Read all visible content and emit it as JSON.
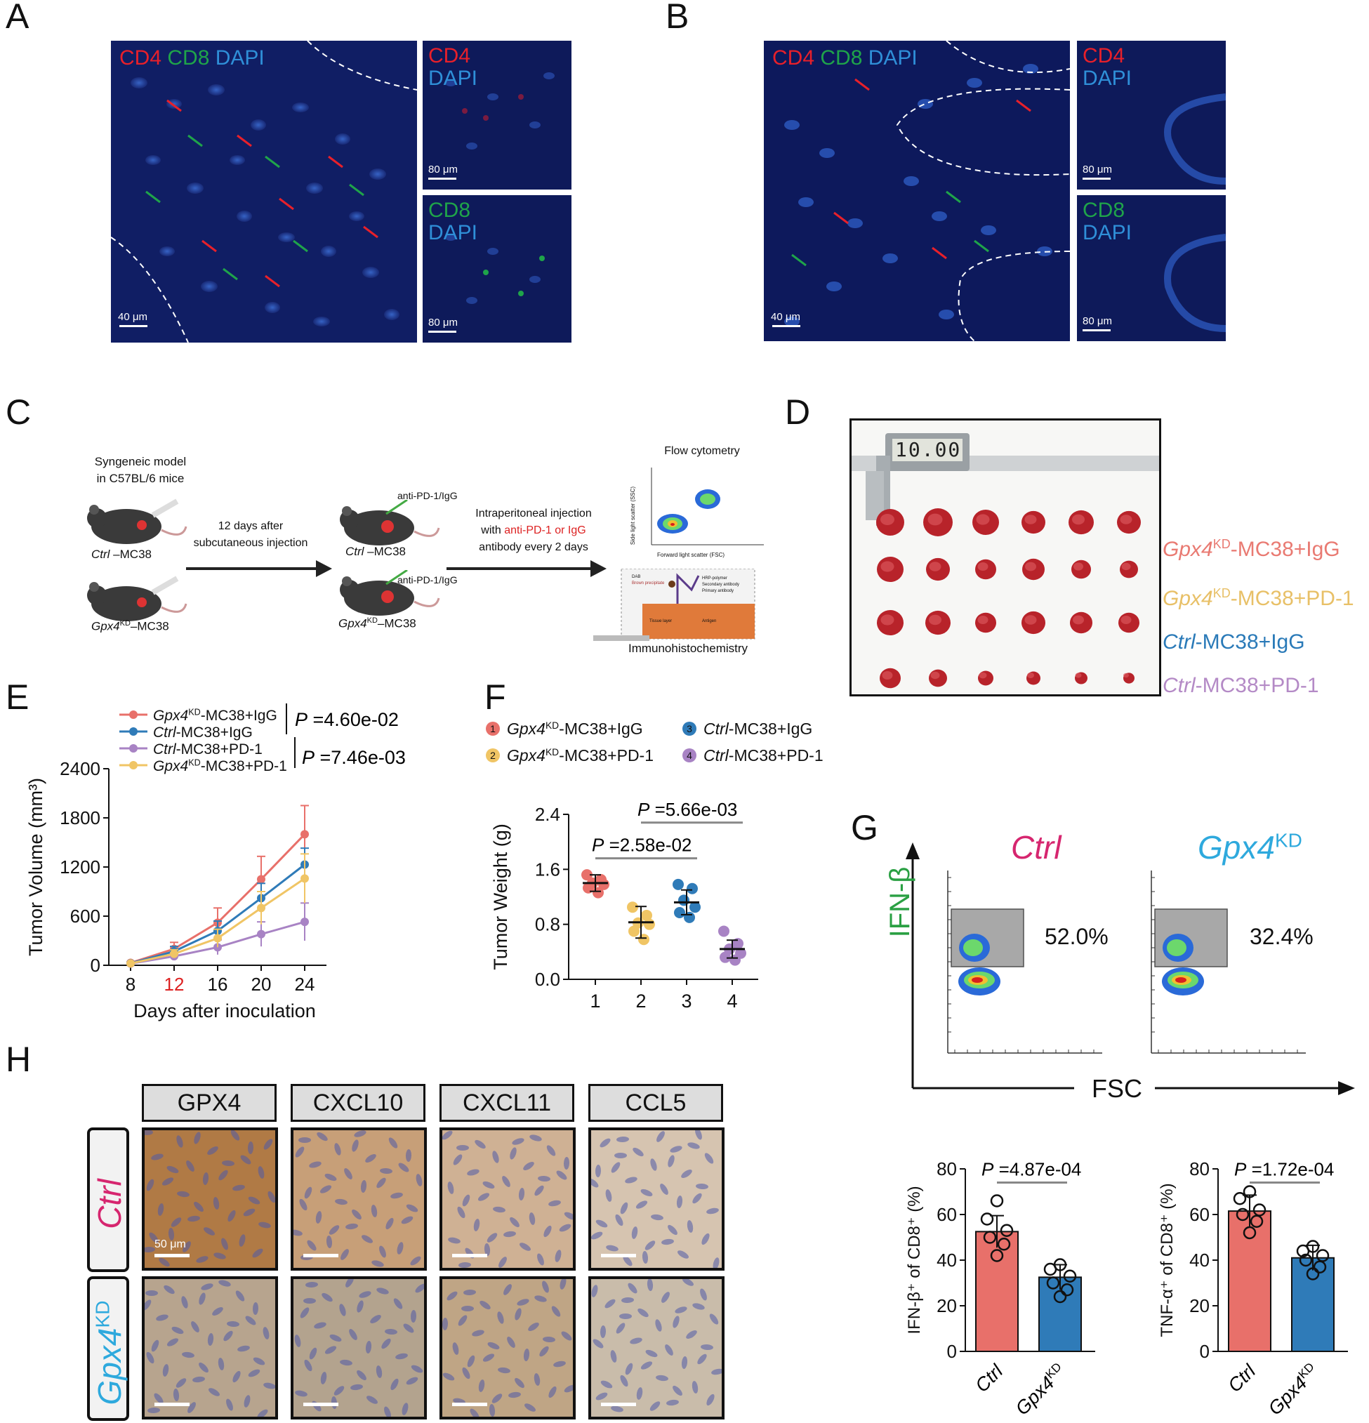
{
  "panels": {
    "A": "A",
    "B": "B",
    "C": "C",
    "D": "D",
    "E": "E",
    "F": "F",
    "G": "G",
    "H": "H"
  },
  "micro": {
    "cd4": "CD4",
    "cd8": "CD8",
    "dapi": "DAPI",
    "scale40": "40 μm",
    "scale80": "80 μm",
    "colors": {
      "cd4": "#e8202a",
      "cd8": "#1fa44a",
      "dapi": "#2f8fd8",
      "bg": "#0a1650"
    }
  },
  "schematic": {
    "model_line1": "Syngeneic model",
    "model_line2": "in C57BL/6 mice",
    "ctrl_prefix": "Ctrl",
    "ctrl_suffix": " –MC38",
    "gpx4_prefix": "Gpx4",
    "gpx4_sup": "KD",
    "gpx4_suffix": "–MC38",
    "step1_line1": "12 days after",
    "step1_line2": "subcutaneous injection",
    "anti": "anti-PD-1/IgG",
    "step2_line1": "Intraperitoneal injection",
    "step2_line2_a": "with ",
    "step2_line2_red": "anti-PD-1 or IgG",
    "step2_line3": "antibody every 2 days",
    "flow_title": "Flow cytometry",
    "flow_xlabel": "Forward light scatter (FSC)",
    "flow_ylabel": "Side light scatter (SSC)",
    "ihc_title": "Immunohistochemistry",
    "ihc_labels": [
      "DAB",
      "Brown precipitate",
      "HRP-polymer",
      "Secondary antibody",
      "Primary antibody",
      "Tissue layer",
      "Antigen"
    ]
  },
  "photo": {
    "caliper_reading": "10.00",
    "rows": [
      {
        "prefix": "Gpx4",
        "sup": "KD",
        "suffix": "-MC38+IgG",
        "color": "#e97a72"
      },
      {
        "prefix": "Gpx4",
        "sup": "KD",
        "suffix": "-MC38+PD-1",
        "color": "#e8c067"
      },
      {
        "prefix": "Ctrl",
        "sup": "",
        "suffix": "-MC38+IgG",
        "color": "#2a7ab8"
      },
      {
        "prefix": "Ctrl",
        "sup": "",
        "suffix": "-MC38+PD-1",
        "color": "#b48ac6"
      }
    ]
  },
  "chart_data": [
    {
      "id": "E",
      "type": "line",
      "xlabel": "Days after inoculation",
      "ylabel": "Tumor Volume (mm³)",
      "x": [
        8,
        12,
        16,
        20,
        24
      ],
      "highlight_x": 12,
      "ylim": [
        0,
        2400
      ],
      "yticks": [
        0,
        600,
        1200,
        1800,
        2400
      ],
      "series": [
        {
          "name": "Gpx4KD-MC38+IgG",
          "label_prefix": "Gpx4",
          "label_sup": "KD",
          "label_suffix": "-MC38+IgG",
          "color": "#e8706a",
          "values": [
            30,
            200,
            520,
            1050,
            1600
          ],
          "err": [
            10,
            80,
            180,
            280,
            350
          ]
        },
        {
          "name": "Ctrl-MC38+IgG",
          "label_prefix": "Ctrl",
          "label_sup": "",
          "label_suffix": "-MC38+IgG",
          "color": "#2f7bb8",
          "values": [
            25,
            170,
            420,
            820,
            1230
          ],
          "err": [
            10,
            60,
            120,
            180,
            200
          ]
        },
        {
          "name": "Ctrl-MC38+PD-1",
          "label_prefix": "Ctrl",
          "label_sup": "",
          "label_suffix": "-MC38+PD-1",
          "color": "#a883c4",
          "values": [
            20,
            110,
            220,
            380,
            530
          ],
          "err": [
            8,
            40,
            90,
            150,
            230
          ]
        },
        {
          "name": "Gpx4KD-MC38+PD-1",
          "label_prefix": "Gpx4",
          "label_sup": "KD",
          "label_suffix": "-MC38+PD-1",
          "color": "#f0c565",
          "values": [
            22,
            140,
            330,
            700,
            1060
          ],
          "err": [
            8,
            50,
            110,
            200,
            300
          ]
        }
      ],
      "pvalues": [
        {
          "label": "P",
          "value": " =4.60e-02"
        },
        {
          "label": "P",
          "value": " =7.46e-03"
        }
      ]
    },
    {
      "id": "F",
      "type": "scatter",
      "ylabel": "Tumor Weight (g)",
      "categories": [
        "1",
        "2",
        "3",
        "4"
      ],
      "ylim": [
        0,
        2.4
      ],
      "yticks": [
        "0.0",
        "0.8",
        "1.6",
        "2.4"
      ],
      "legend": [
        {
          "num": "1",
          "prefix": "Gpx4",
          "sup": "KD",
          "suffix": "-MC38+IgG",
          "color": "#e8706a"
        },
        {
          "num": "3",
          "prefix": "Ctrl",
          "sup": "",
          "suffix": "-MC38+IgG",
          "color": "#2f7bb8"
        },
        {
          "num": "2",
          "prefix": "Gpx4",
          "sup": "KD",
          "suffix": "-MC38+PD-1",
          "color": "#f0c565"
        },
        {
          "num": "4",
          "prefix": "Ctrl",
          "sup": "",
          "suffix": "-MC38+PD-1",
          "color": "#a883c4"
        }
      ],
      "groups": [
        {
          "color": "#e8706a",
          "mean": 1.4,
          "sd": 0.12,
          "points": [
            1.52,
            1.45,
            1.4,
            1.38,
            1.33,
            1.26
          ]
        },
        {
          "color": "#f0c565",
          "mean": 0.83,
          "sd": 0.23,
          "points": [
            1.05,
            0.93,
            0.82,
            0.8,
            0.7,
            0.58
          ]
        },
        {
          "color": "#2f7bb8",
          "mean": 1.12,
          "sd": 0.18,
          "points": [
            1.38,
            1.32,
            1.15,
            1.05,
            0.97,
            0.9
          ]
        },
        {
          "color": "#a883c4",
          "mean": 0.44,
          "sd": 0.13,
          "points": [
            0.7,
            0.52,
            0.44,
            0.38,
            0.32,
            0.28
          ]
        }
      ],
      "pvalues": [
        {
          "label": "P",
          "value": " =2.58e-02"
        },
        {
          "label": "P",
          "value": " =5.66e-03"
        }
      ]
    },
    {
      "id": "G1",
      "type": "bar",
      "ylabel": "IFN-β⁺ of  CD8⁺ (%)",
      "categories": [
        "Ctrl",
        "Gpx4KD"
      ],
      "category_prefix": [
        "Ctrl",
        "Gpx4"
      ],
      "category_sup": [
        "",
        "KD"
      ],
      "values": [
        52.5,
        32.5
      ],
      "err": [
        7,
        5.5
      ],
      "colors": [
        "#e8706a",
        "#2f7bb8"
      ],
      "points": [
        [
          66,
          58,
          53,
          50,
          47,
          42
        ],
        [
          38,
          36,
          33,
          30,
          27,
          24
        ]
      ],
      "ylim": [
        0,
        80
      ],
      "yticks": [
        0,
        20,
        40,
        60,
        80
      ],
      "pvalue": {
        "label": "P",
        "value": " =4.87e-04"
      }
    },
    {
      "id": "G2",
      "type": "bar",
      "ylabel": "TNF-α⁺ of CD8⁺ (%)",
      "categories": [
        "Ctrl",
        "Gpx4KD"
      ],
      "category_prefix": [
        "Ctrl",
        "Gpx4"
      ],
      "category_sup": [
        "",
        "KD"
      ],
      "values": [
        61.5,
        41
      ],
      "err": [
        7,
        5.5
      ],
      "colors": [
        "#e8706a",
        "#2f7bb8"
      ],
      "points": [
        [
          70,
          67,
          62,
          60,
          57,
          52
        ],
        [
          46,
          44,
          42,
          40,
          37,
          34
        ]
      ],
      "ylim": [
        0,
        80
      ],
      "yticks": [
        0,
        20,
        40,
        60,
        80
      ],
      "pvalue": {
        "label": "P",
        "value": " =1.72e-04"
      }
    }
  ],
  "flow": {
    "ctrl_title": "Ctrl",
    "gpx4_prefix": "Gpx4",
    "gpx4_sup": "KD",
    "ctrl_pct": "52.0%",
    "gpx4_pct": "32.4%",
    "yaxis": "IFN-β",
    "xaxis": "FSC",
    "ctrl_color": "#d6266f",
    "gpx4_color": "#2ea9dd",
    "ifn_color": "#2aa043"
  },
  "ihc": {
    "headers": [
      "GPX4",
      "CXCL10",
      "CXCL11",
      "CCL5"
    ],
    "row_ctrl": "Ctrl",
    "row_gpx4_prefix": "Gpx4",
    "row_gpx4_sup": "KD",
    "scale": "50 μm"
  }
}
